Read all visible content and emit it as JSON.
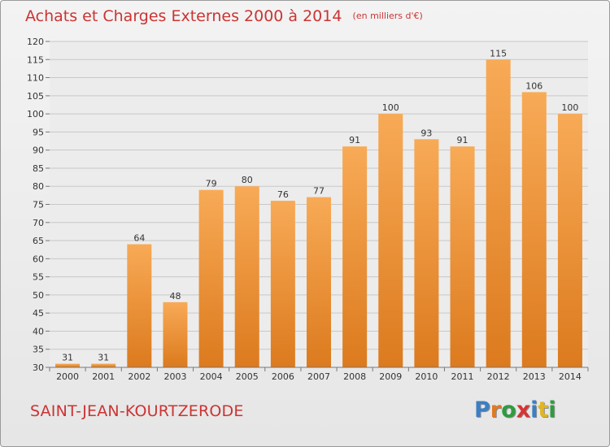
{
  "title": "Achats et Charges Externes 2000 à 2014",
  "subtitle": "(en milliers d'€)",
  "commune": "SAINT-JEAN-KOURTZERODE",
  "logo": {
    "text": "Proxiti",
    "letters": [
      {
        "ch": "P",
        "color": "#3b7fc4"
      },
      {
        "ch": "r",
        "color": "#e07b24"
      },
      {
        "ch": "o",
        "color": "#2e9c3f"
      },
      {
        "ch": "x",
        "color": "#d63434"
      },
      {
        "ch": "i",
        "color": "#3b7fc4"
      },
      {
        "ch": "t",
        "color": "#e0b624"
      },
      {
        "ch": "i",
        "color": "#2e9c3f"
      }
    ]
  },
  "colors": {
    "title": "#cc3333",
    "bar_top": "#f8aa56",
    "bar_bottom": "#dc7a1e",
    "grid": "#c8c8c8"
  },
  "chart_data": {
    "type": "bar",
    "categories": [
      "2000",
      "2001",
      "2002",
      "2003",
      "2004",
      "2005",
      "2006",
      "2007",
      "2008",
      "2009",
      "2010",
      "2011",
      "2012",
      "2013",
      "2014"
    ],
    "values": [
      31,
      31,
      64,
      48,
      79,
      80,
      76,
      77,
      91,
      100,
      93,
      91,
      115,
      106,
      100
    ],
    "ylim": [
      30,
      120
    ],
    "yticks": [
      30,
      35,
      40,
      45,
      50,
      55,
      60,
      65,
      70,
      75,
      80,
      85,
      90,
      95,
      100,
      105,
      110,
      115,
      120
    ],
    "grid": true,
    "xlabel": "",
    "ylabel": ""
  }
}
